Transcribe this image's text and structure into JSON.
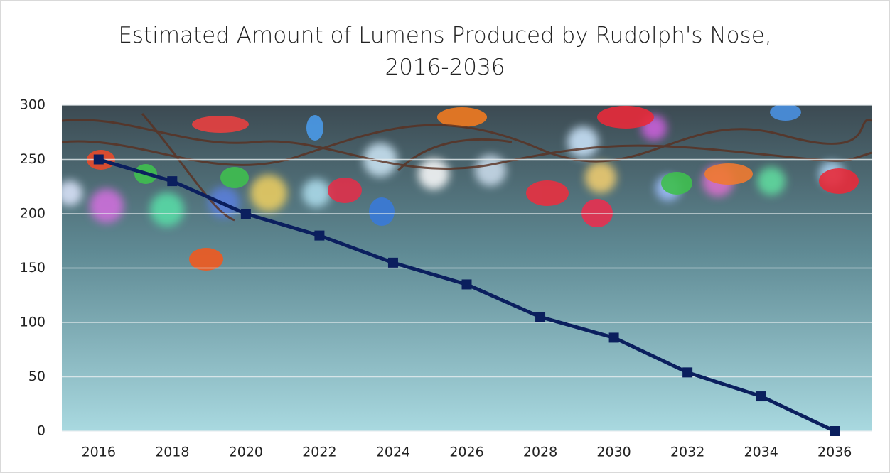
{
  "chart_data": {
    "type": "line",
    "title": "Estimated Amount of Lumens Produced by Rudolph's Nose, 2016-2036",
    "categories": [
      "2016",
      "2018",
      "2020",
      "2022",
      "2024",
      "2026",
      "2028",
      "2030",
      "2032",
      "2034",
      "2036"
    ],
    "series": [
      {
        "color": "#0b1f5e",
        "values": [
          250,
          230,
          200,
          180,
          155,
          135,
          105,
          86,
          54,
          32,
          0
        ]
      }
    ],
    "ylim": [
      0,
      300
    ],
    "yticks": [
      0,
      50,
      100,
      150,
      200,
      250,
      300
    ],
    "grid": true
  }
}
